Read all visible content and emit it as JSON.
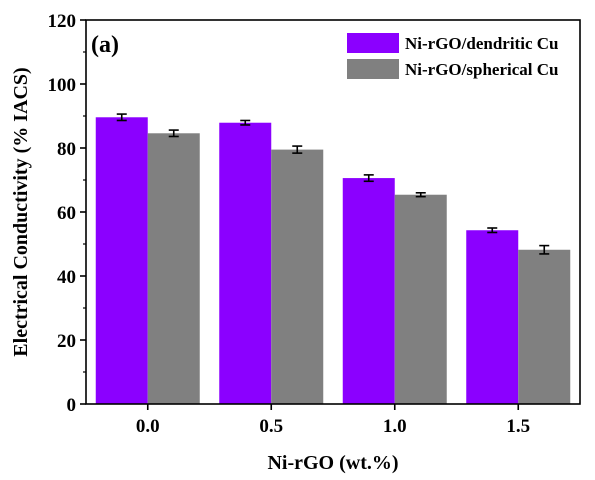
{
  "chart_data": {
    "type": "bar",
    "panel_label": "(a)",
    "xlabel": "Ni-rGO (wt.%)",
    "ylabel": "Electrical Conductivity (% IACS)",
    "categories": [
      "0.0",
      "0.5",
      "1.0",
      "1.5"
    ],
    "ylim": [
      0,
      120
    ],
    "yticks": [
      "0",
      "20",
      "40",
      "60",
      "80",
      "100",
      "120"
    ],
    "series": [
      {
        "name": "Ni-rGO/dendritic Cu",
        "color": "#8b00ff",
        "values": [
          89.6,
          87.9,
          70.6,
          54.3
        ],
        "errors": [
          1.0,
          0.7,
          1.0,
          0.7
        ]
      },
      {
        "name": "Ni-rGO/spherical Cu",
        "color": "#808080",
        "values": [
          84.6,
          79.5,
          65.4,
          48.2
        ],
        "errors": [
          1.0,
          1.1,
          0.6,
          1.3
        ]
      }
    ],
    "legend_position": "top-right",
    "grid": false
  }
}
